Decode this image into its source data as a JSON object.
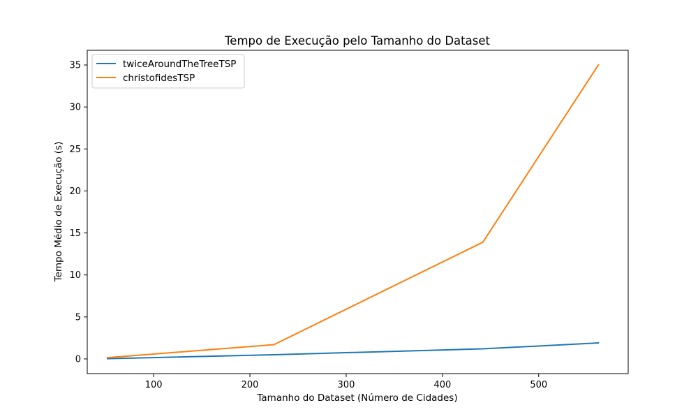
{
  "chart_data": {
    "type": "line",
    "title": "Tempo de Execução pelo Tamanho do Dataset",
    "xlabel": "Tamanho do Dataset (Número de Cidades)",
    "ylabel": "Tempo Médio de Execução (s)",
    "xlim": [
      31,
      593
    ],
    "ylim": [
      -1.75,
      36.75
    ],
    "xticks": [
      100,
      200,
      300,
      400,
      500
    ],
    "yticks": [
      0,
      5,
      10,
      15,
      20,
      25,
      30,
      35
    ],
    "grid": false,
    "legend_position": "top-left",
    "series": [
      {
        "name": "twiceAroundTheTreeTSP",
        "color": "#1f77b4",
        "x": [
          52,
          225,
          442,
          562
        ],
        "y": [
          0.03,
          0.5,
          1.2,
          1.9
        ]
      },
      {
        "name": "christofidesTSP",
        "color": "#ff7f0e",
        "x": [
          52,
          225,
          442,
          562
        ],
        "y": [
          0.15,
          1.7,
          13.9,
          35.0
        ]
      }
    ]
  }
}
